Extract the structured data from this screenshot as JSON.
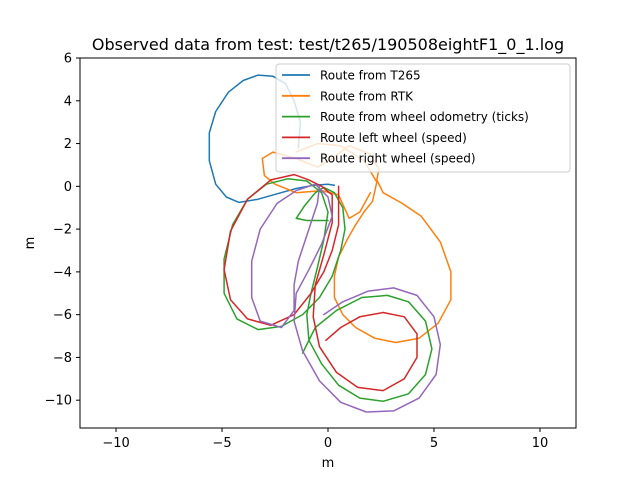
{
  "chart_data": {
    "type": "line",
    "title": "Observed data from test: test/t265/190508eightF1_0_1.log",
    "xlabel": "m",
    "ylabel": "m",
    "xlim": [
      -11.7,
      11.7
    ],
    "ylim": [
      -11.3,
      6.0
    ],
    "xticks": [
      -10,
      -5,
      0,
      5,
      10
    ],
    "yticks": [
      -10,
      -8,
      -6,
      -4,
      -2,
      0,
      2,
      4,
      6
    ],
    "grid": false,
    "legend_position": "top-right",
    "series": [
      {
        "name": "Route from T265",
        "color": "#1f77b4",
        "points": [
          [
            -1.4,
            1.8
          ],
          [
            -1.3,
            3.0
          ],
          [
            -1.6,
            4.0
          ],
          [
            -2.0,
            4.8
          ],
          [
            -2.6,
            5.15
          ],
          [
            -3.3,
            5.2
          ],
          [
            -4.0,
            4.95
          ],
          [
            -4.7,
            4.4
          ],
          [
            -5.3,
            3.5
          ],
          [
            -5.6,
            2.5
          ],
          [
            -5.6,
            1.2
          ],
          [
            -5.3,
            0.1
          ],
          [
            -4.8,
            -0.5
          ],
          [
            -4.2,
            -0.75
          ],
          [
            -3.3,
            -0.6
          ],
          [
            -2.4,
            -0.35
          ],
          [
            -1.5,
            -0.1
          ],
          [
            -0.7,
            0.05
          ],
          [
            0.0,
            0.1
          ],
          [
            0.3,
            0.05
          ]
        ]
      },
      {
        "name": "Route from RTK",
        "color": "#ff7f0e",
        "points": [
          [
            -1.5,
            1.6
          ],
          [
            -0.5,
            2.0
          ],
          [
            0.6,
            1.9
          ],
          [
            1.7,
            1.2
          ],
          [
            2.3,
            0.2
          ],
          [
            2.1,
            -0.7
          ],
          [
            1.7,
            -1.2
          ],
          [
            1.3,
            -1.8
          ],
          [
            0.9,
            -2.5
          ],
          [
            0.5,
            -3.3
          ],
          [
            0.3,
            -4.2
          ],
          [
            0.3,
            -5.2
          ],
          [
            0.7,
            -6.0
          ],
          [
            1.3,
            -6.6
          ],
          [
            2.2,
            -7.1
          ],
          [
            3.2,
            -7.3
          ],
          [
            4.3,
            -7.1
          ],
          [
            5.2,
            -6.4
          ],
          [
            5.8,
            -5.3
          ],
          [
            5.8,
            -4.0
          ],
          [
            5.3,
            -2.6
          ],
          [
            4.4,
            -1.4
          ],
          [
            3.5,
            -0.8
          ],
          [
            2.6,
            -0.3
          ],
          [
            2.3,
            0.3
          ],
          [
            2.4,
            0.8
          ],
          [
            2.0,
            1.5
          ],
          [
            1.0,
            1.9
          ],
          [
            0.2,
            1.3
          ],
          [
            -0.5,
            0.9
          ],
          [
            -1.5,
            1.3
          ],
          [
            -2.6,
            1.6
          ],
          [
            -3.1,
            1.3
          ],
          [
            -3.0,
            0.5
          ],
          [
            -2.5,
            0.1
          ],
          [
            -1.5,
            -0.3
          ],
          [
            -0.3,
            -0.2
          ],
          [
            0.5,
            -0.4
          ],
          [
            1.0,
            -1.5
          ],
          [
            1.5,
            -1.2
          ],
          [
            2.0,
            -0.3
          ]
        ]
      },
      {
        "name": "Route from wheel odometry (ticks)",
        "color": "#2ca02c",
        "points": [
          [
            0.0,
            -1.6
          ],
          [
            -0.5,
            -1.6
          ],
          [
            -1.0,
            -1.6
          ],
          [
            -1.5,
            -1.5
          ],
          [
            -1.1,
            -0.9
          ],
          [
            -0.6,
            -0.3
          ],
          [
            -0.2,
            -0.05
          ],
          [
            0.3,
            -0.3
          ],
          [
            0.7,
            -1.0
          ],
          [
            0.8,
            -2.0
          ],
          [
            0.6,
            -3.0
          ],
          [
            0.2,
            -4.2
          ],
          [
            -0.4,
            -5.2
          ],
          [
            -1.2,
            -6.0
          ],
          [
            -2.2,
            -6.55
          ],
          [
            -3.3,
            -6.7
          ],
          [
            -4.3,
            -6.2
          ],
          [
            -4.9,
            -5.0
          ],
          [
            -4.9,
            -3.4
          ],
          [
            -4.5,
            -1.8
          ],
          [
            -3.8,
            -0.6
          ],
          [
            -2.9,
            0.1
          ],
          [
            -1.9,
            0.35
          ],
          [
            -1.0,
            0.25
          ],
          [
            -0.3,
            -0.3
          ],
          [
            0.0,
            -1.2
          ],
          [
            -0.2,
            -2.5
          ],
          [
            -0.5,
            -3.8
          ],
          [
            -0.8,
            -5.0
          ],
          [
            -1.0,
            -6.0
          ],
          [
            -0.9,
            -7.2
          ],
          [
            -0.3,
            -8.3
          ],
          [
            0.5,
            -9.3
          ],
          [
            1.5,
            -9.9
          ],
          [
            2.6,
            -10.05
          ],
          [
            3.8,
            -9.7
          ],
          [
            4.6,
            -8.8
          ],
          [
            4.9,
            -7.6
          ],
          [
            4.6,
            -6.3
          ],
          [
            3.8,
            -5.4
          ],
          [
            2.8,
            -5.1
          ],
          [
            1.6,
            -5.2
          ],
          [
            0.4,
            -5.8
          ],
          [
            -0.6,
            -6.6
          ],
          [
            -1.2,
            -7.8
          ]
        ]
      },
      {
        "name": "Route left wheel (speed)",
        "color": "#d62728",
        "points": [
          [
            0.5,
            0.0
          ],
          [
            0.5,
            -0.9
          ],
          [
            0.5,
            -1.8
          ],
          [
            0.2,
            -3.0
          ],
          [
            -0.2,
            -4.0
          ],
          [
            -0.8,
            -5.0
          ],
          [
            -1.6,
            -6.0
          ],
          [
            -2.7,
            -6.5
          ],
          [
            -3.8,
            -6.2
          ],
          [
            -4.6,
            -5.3
          ],
          [
            -4.9,
            -3.9
          ],
          [
            -4.6,
            -2.1
          ],
          [
            -3.8,
            -0.6
          ],
          [
            -2.7,
            0.3
          ],
          [
            -1.6,
            0.55
          ],
          [
            -0.9,
            0.3
          ],
          [
            -0.3,
            0.0
          ],
          [
            0.2,
            -0.4
          ],
          [
            0.2,
            -1.7
          ],
          [
            -0.2,
            -3.2
          ],
          [
            -0.6,
            -4.6
          ],
          [
            -0.7,
            -6.1
          ],
          [
            -0.4,
            -7.5
          ],
          [
            0.4,
            -8.7
          ],
          [
            1.4,
            -9.4
          ],
          [
            2.6,
            -9.55
          ],
          [
            3.6,
            -9.0
          ],
          [
            4.2,
            -8.0
          ],
          [
            4.2,
            -6.9
          ],
          [
            3.6,
            -6.1
          ],
          [
            2.6,
            -5.9
          ],
          [
            1.5,
            -6.1
          ],
          [
            0.6,
            -6.6
          ],
          [
            -0.1,
            -7.2
          ]
        ]
      },
      {
        "name": "Route right wheel (speed)",
        "color": "#9467bd",
        "points": [
          [
            -0.4,
            0.0
          ],
          [
            -0.5,
            -0.8
          ],
          [
            -0.9,
            -2.0
          ],
          [
            -1.4,
            -3.5
          ],
          [
            -1.6,
            -4.6
          ],
          [
            -1.6,
            -5.8
          ],
          [
            -2.2,
            -6.6
          ],
          [
            -3.2,
            -6.3
          ],
          [
            -3.6,
            -5.2
          ],
          [
            -3.6,
            -3.5
          ],
          [
            -3.2,
            -2.0
          ],
          [
            -2.4,
            -0.8
          ],
          [
            -1.5,
            -0.2
          ],
          [
            -0.6,
            0.1
          ],
          [
            0.0,
            -0.5
          ],
          [
            0.2,
            -1.4
          ],
          [
            -0.3,
            -2.7
          ],
          [
            -0.9,
            -3.9
          ],
          [
            -1.5,
            -5.0
          ],
          [
            -1.6,
            -6.3
          ],
          [
            -1.2,
            -7.7
          ],
          [
            -0.4,
            -9.1
          ],
          [
            0.6,
            -10.1
          ],
          [
            1.8,
            -10.55
          ],
          [
            3.1,
            -10.5
          ],
          [
            4.3,
            -9.9
          ],
          [
            5.1,
            -8.8
          ],
          [
            5.3,
            -7.4
          ],
          [
            5.0,
            -6.1
          ],
          [
            4.2,
            -5.1
          ],
          [
            3.1,
            -4.75
          ],
          [
            1.9,
            -4.9
          ],
          [
            0.7,
            -5.4
          ],
          [
            -0.2,
            -6.0
          ]
        ]
      }
    ]
  }
}
